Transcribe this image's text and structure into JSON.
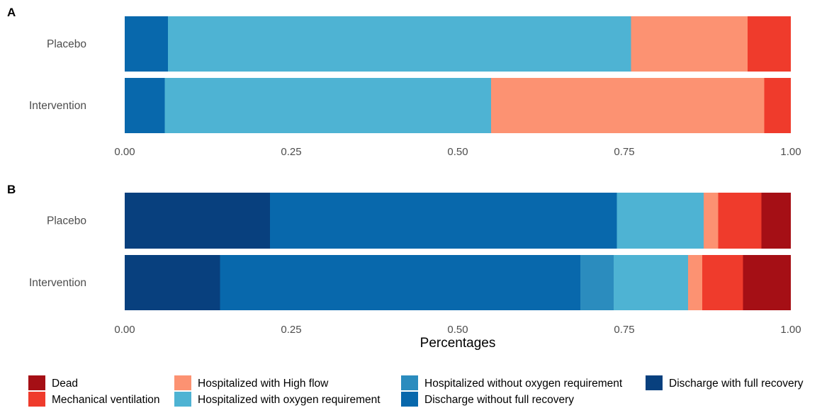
{
  "chart_data": {
    "type": "bar",
    "orientation": "horizontal",
    "stacked": true,
    "xlabel": "Percentages",
    "xlim": [
      0,
      1
    ],
    "x_ticks": [
      "0.00",
      "0.25",
      "0.50",
      "0.75",
      "1.00"
    ],
    "grid": false,
    "legend_position": "bottom",
    "legend": [
      {
        "name": "Dead",
        "color": "#A50F15"
      },
      {
        "name": "Mechanical ventilation",
        "color": "#EF3B2C"
      },
      {
        "name": "Hospitalized with High flow",
        "color": "#FC9272"
      },
      {
        "name": "Hospitalized with oxygen requirement",
        "color": "#4EB3D3"
      },
      {
        "name": "Hospitalized without oxygen requirement",
        "color": "#2B8CBE"
      },
      {
        "name": "Discharge without full recovery",
        "color": "#0868AC"
      },
      {
        "name": "Discharge with full recovery",
        "color": "#08407E"
      }
    ],
    "panels": [
      {
        "label": "A",
        "categories": [
          "Placebo",
          "Intervention"
        ],
        "series": [
          {
            "name": "Discharge without full recovery",
            "values": [
              0.065,
              0.06
            ]
          },
          {
            "name": "Hospitalized with oxygen requirement",
            "values": [
              0.695,
              0.49
            ]
          },
          {
            "name": "Hospitalized with High flow",
            "values": [
              0.175,
              0.41
            ]
          },
          {
            "name": "Mechanical ventilation",
            "values": [
              0.065,
              0.04
            ]
          }
        ]
      },
      {
        "label": "B",
        "categories": [
          "Placebo",
          "Intervention"
        ],
        "series": [
          {
            "name": "Discharge with full recovery",
            "values": [
              0.218,
              0.143
            ]
          },
          {
            "name": "Discharge without full recovery",
            "values": [
              0.521,
              0.541
            ]
          },
          {
            "name": "Hospitalized without oxygen requirement",
            "values": [
              0.0,
              0.05
            ]
          },
          {
            "name": "Hospitalized with oxygen requirement",
            "values": [
              0.13,
              0.112
            ]
          },
          {
            "name": "Hospitalized with High flow",
            "values": [
              0.022,
              0.021
            ]
          },
          {
            "name": "Mechanical ventilation",
            "values": [
              0.065,
              0.061
            ]
          },
          {
            "name": "Dead",
            "values": [
              0.044,
              0.072
            ]
          }
        ]
      }
    ]
  }
}
